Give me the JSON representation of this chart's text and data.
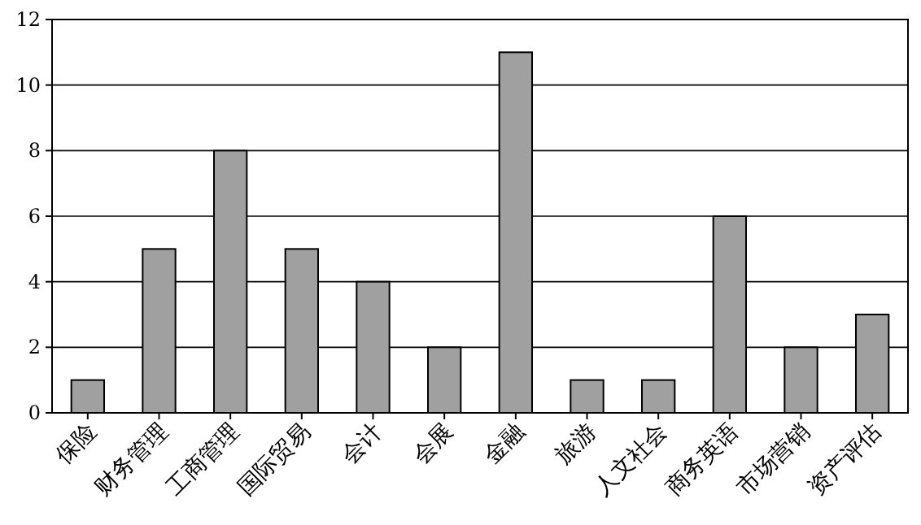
{
  "chart_data": {
    "type": "bar",
    "categories": [
      "保险",
      "财务管理",
      "工商管理",
      "国际贸易",
      "会计",
      "会展",
      "金融",
      "旅游",
      "人文社会",
      "商务英语",
      "市场营销",
      "资产评估"
    ],
    "values": [
      1,
      5,
      8,
      5,
      4,
      2,
      11,
      1,
      1,
      6,
      2,
      3
    ],
    "color": "#a0a0a0",
    "ylim": [
      0,
      12
    ],
    "yticks": [
      0,
      2,
      4,
      6,
      8,
      10,
      12
    ],
    "grid": "y"
  }
}
